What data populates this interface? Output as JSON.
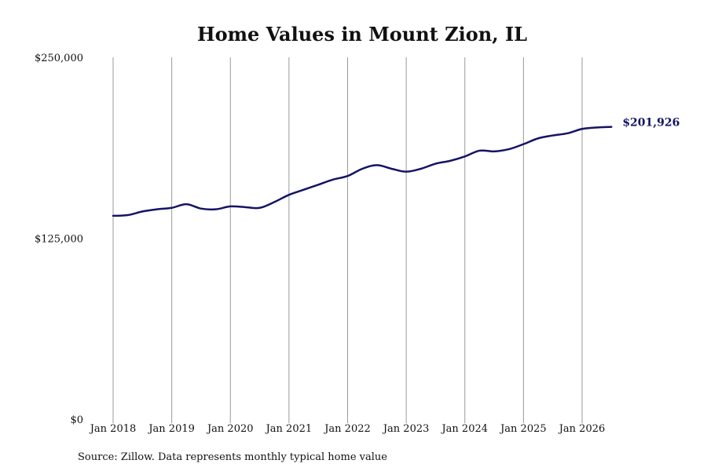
{
  "chart_data": {
    "type": "line",
    "title": "Home Values in Mount Zion, IL",
    "xlabel": "",
    "ylabel": "",
    "ylim": [
      0,
      250000
    ],
    "yticks": [
      {
        "value": 0,
        "label": "$0"
      },
      {
        "value": 125000,
        "label": "$125,000"
      },
      {
        "value": 250000,
        "label": "$250,000"
      }
    ],
    "xticks": [
      {
        "value": 2018.0,
        "label": "Jan 2018"
      },
      {
        "value": 2019.0,
        "label": "Jan 2019"
      },
      {
        "value": 2020.0,
        "label": "Jan 2020"
      },
      {
        "value": 2021.0,
        "label": "Jan 2021"
      },
      {
        "value": 2022.0,
        "label": "Jan 2022"
      },
      {
        "value": 2023.0,
        "label": "Jan 2023"
      },
      {
        "value": 2024.0,
        "label": "Jan 2024"
      },
      {
        "value": 2025.0,
        "label": "Jan 2025"
      },
      {
        "value": 2026.0,
        "label": "Jan 2026"
      }
    ],
    "xlim": [
      2018.0,
      2026.5
    ],
    "grid": "vertical",
    "line_color": "#141463",
    "series": [
      {
        "end_label": "$201,926",
        "x": [
          2018.0,
          2018.25,
          2018.5,
          2018.75,
          2019.0,
          2019.25,
          2019.5,
          2019.75,
          2020.0,
          2020.25,
          2020.5,
          2020.75,
          2021.0,
          2021.25,
          2021.5,
          2021.75,
          2022.0,
          2022.25,
          2022.5,
          2022.75,
          2023.0,
          2023.25,
          2023.5,
          2023.75,
          2024.0,
          2024.25,
          2024.5,
          2024.75,
          2025.0,
          2025.25,
          2025.5,
          2025.75,
          2026.0,
          2026.25,
          2026.5
        ],
        "y": [
          140500,
          141000,
          143500,
          145000,
          146000,
          148500,
          145500,
          145000,
          147000,
          146500,
          146000,
          150000,
          155000,
          158500,
          162000,
          165500,
          168000,
          173000,
          175500,
          173000,
          171000,
          173000,
          176500,
          178500,
          181500,
          185500,
          185000,
          186500,
          190000,
          194000,
          196000,
          197500,
          200500,
          201500,
          201926
        ]
      }
    ]
  },
  "source_text": "Source: Zillow. Data represents monthly typical home value"
}
